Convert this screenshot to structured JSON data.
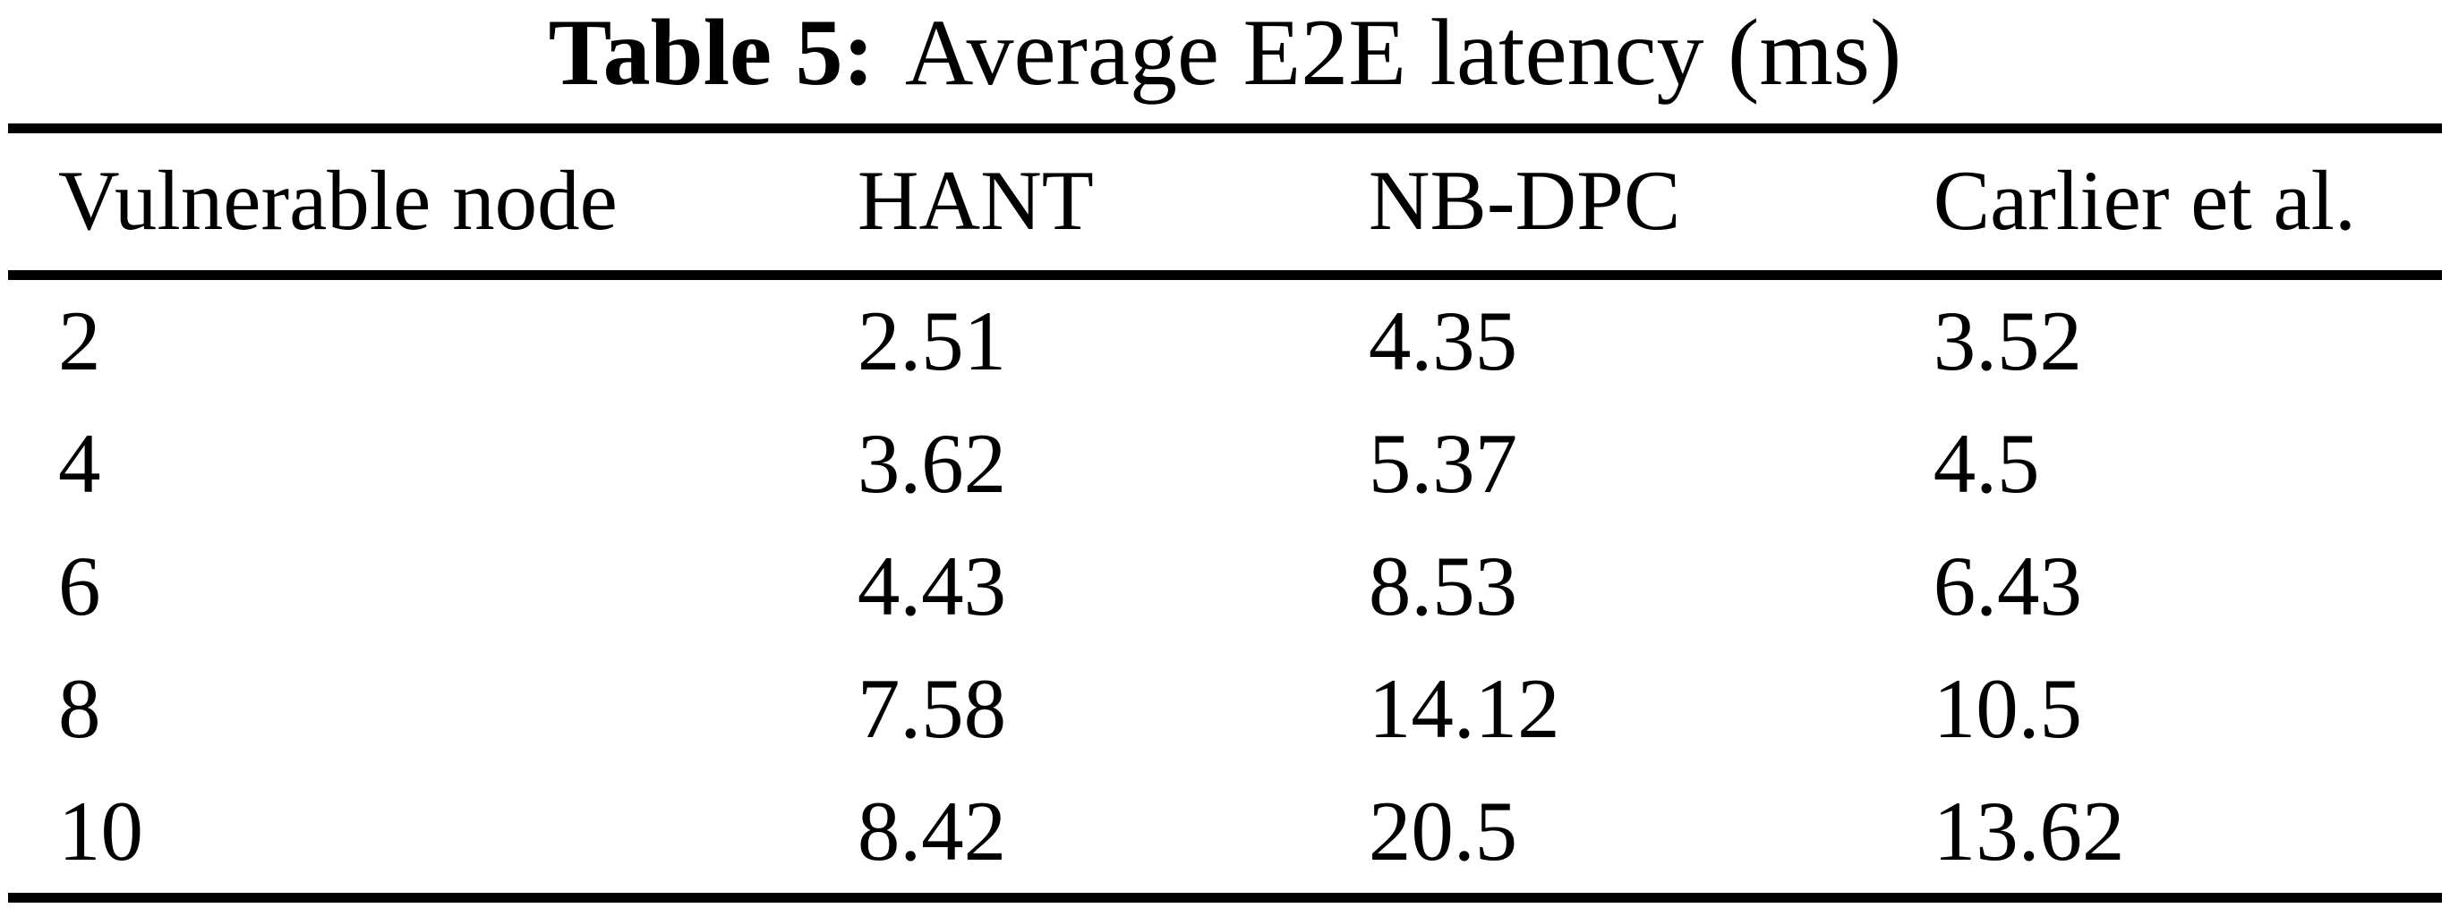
{
  "caption": {
    "label": "Table 5:",
    "text": "Average E2E latency (ms)"
  },
  "chart_data": {
    "type": "table",
    "title": "Table 5: Average E2E latency (ms)",
    "columns": [
      "Vulnerable node",
      "HANT",
      "NB-DPC",
      "Carlier et al."
    ],
    "rows": [
      [
        "2",
        "2.51",
        "4.35",
        "3.52"
      ],
      [
        "4",
        "3.62",
        "5.37",
        "4.5"
      ],
      [
        "6",
        "4.43",
        "8.53",
        "6.43"
      ],
      [
        "8",
        "7.58",
        "14.12",
        "10.5"
      ],
      [
        "10",
        "8.42",
        "20.5",
        "13.62"
      ]
    ]
  },
  "colors": {
    "background": "#ffffff",
    "text": "#000000",
    "rule": "#000000"
  }
}
